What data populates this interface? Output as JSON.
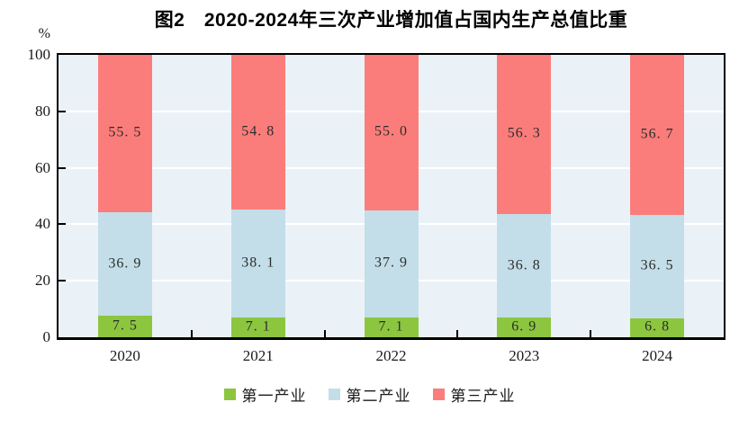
{
  "chart_data": {
    "type": "bar",
    "stacked": true,
    "title": "图2　2020-2024年三次产业增加值占国内生产总值比重",
    "ylabel": "%",
    "ylim": [
      0,
      100
    ],
    "yticks": [
      0,
      20,
      40,
      60,
      80,
      100
    ],
    "grid": true,
    "legend_position": "bottom",
    "categories": [
      "2020",
      "2021",
      "2022",
      "2023",
      "2024"
    ],
    "series": [
      {
        "name": "第一产业",
        "key": "primary-industry",
        "color": "#8cc63f",
        "values": [
          7.5,
          7.1,
          7.1,
          6.9,
          6.8
        ],
        "labels": [
          "7.5",
          "7.1",
          "7.1",
          "6.9",
          "6.8"
        ]
      },
      {
        "name": "第二产业",
        "key": "secondary-industry",
        "color": "#c3dee8",
        "values": [
          36.9,
          38.1,
          37.9,
          36.8,
          36.5
        ],
        "labels": [
          "36.9",
          "38.1",
          "37.9",
          "36.8",
          "36.5"
        ]
      },
      {
        "name": "第三产业",
        "key": "tertiary-industry",
        "color": "#fb7d7b",
        "values": [
          55.5,
          54.8,
          55.0,
          56.3,
          56.7
        ],
        "labels": [
          "55.5",
          "54.8",
          "55.0",
          "56.3",
          "56.7"
        ]
      }
    ],
    "colors": {
      "plot_background": "#ebf2f7",
      "gridline": "#ffffff",
      "axis": "#000000",
      "label_text": "#2d2d2d"
    }
  }
}
